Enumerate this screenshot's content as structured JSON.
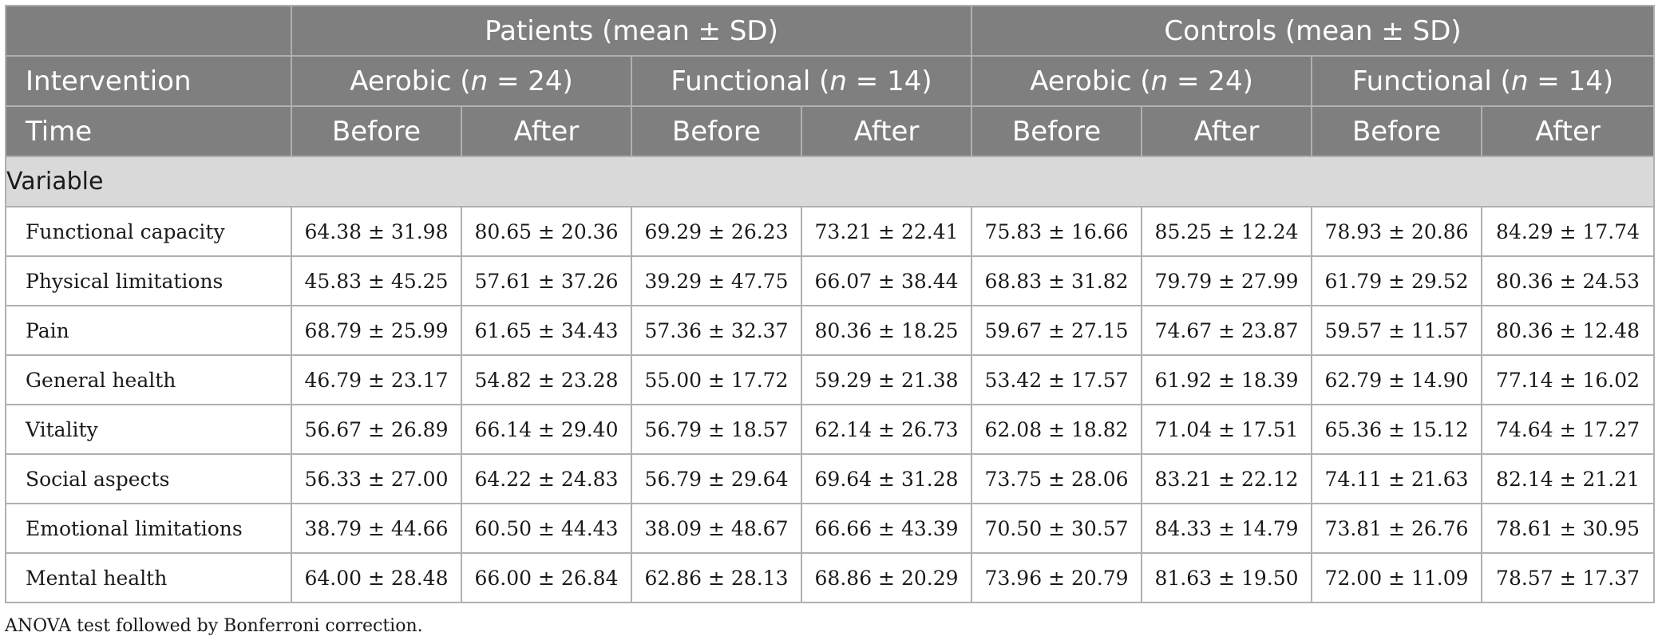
{
  "header": {
    "patients": "Patients (mean ± SD)",
    "controls": "Controls (mean ± SD)",
    "intervention": "Intervention",
    "aerobic_label": "Aerobic (",
    "functional_label": "Functional (",
    "n_symbol": "n",
    "aerobic_n": " = 24)",
    "functional_n": " = 14)",
    "time": "Time",
    "before": "Before",
    "after": "After"
  },
  "variable_label": "Variable",
  "rows": [
    {
      "label": "Functional capacity",
      "values": [
        "64.38 ± 31.98",
        "80.65 ± 20.36",
        "69.29 ± 26.23",
        "73.21 ± 22.41",
        "75.83 ± 16.66",
        "85.25 ± 12.24",
        "78.93 ± 20.86",
        "84.29 ± 17.74"
      ]
    },
    {
      "label": "Physical limitations",
      "values": [
        "45.83 ± 45.25",
        "57.61 ± 37.26",
        "39.29 ± 47.75",
        "66.07 ± 38.44",
        "68.83 ± 31.82",
        "79.79 ± 27.99",
        "61.79 ± 29.52",
        "80.36 ± 24.53"
      ]
    },
    {
      "label": "Pain",
      "values": [
        "68.79 ± 25.99",
        "61.65 ± 34.43",
        "57.36 ± 32.37",
        "80.36 ± 18.25",
        "59.67 ± 27.15",
        "74.67 ± 23.87",
        "59.57 ± 11.57",
        "80.36 ± 12.48"
      ]
    },
    {
      "label": "General health",
      "values": [
        "46.79 ± 23.17",
        "54.82 ± 23.28",
        "55.00 ± 17.72",
        "59.29 ± 21.38",
        "53.42 ± 17.57",
        "61.92 ± 18.39",
        "62.79 ± 14.90",
        "77.14 ± 16.02"
      ]
    },
    {
      "label": "Vitality",
      "values": [
        "56.67 ± 26.89",
        "66.14 ± 29.40",
        "56.79 ± 18.57",
        "62.14 ± 26.73",
        "62.08 ± 18.82",
        "71.04 ± 17.51",
        "65.36 ± 15.12",
        "74.64 ± 17.27"
      ]
    },
    {
      "label": "Social aspects",
      "values": [
        "56.33 ± 27.00",
        "64.22 ± 24.83",
        "56.79 ± 29.64",
        "69.64 ± 31.28",
        "73.75 ± 28.06",
        "83.21 ± 22.12",
        "74.11 ± 21.63",
        "82.14 ± 21.21"
      ]
    },
    {
      "label": "Emotional limitations",
      "values": [
        "38.79 ± 44.66",
        "60.50 ± 44.43",
        "38.09 ± 48.67",
        "66.66 ± 43.39",
        "70.50 ± 30.57",
        "84.33 ± 14.79",
        "73.81 ± 26.76",
        "78.61 ± 30.95"
      ]
    },
    {
      "label": "Mental health",
      "values": [
        "64.00 ± 28.48",
        "66.00 ± 26.84",
        "62.86 ± 28.13",
        "68.86 ± 20.29",
        "73.96 ± 20.79",
        "81.63 ± 19.50",
        "72.00 ± 11.09",
        "78.57 ± 17.37"
      ]
    }
  ],
  "footnote": "ANOVA test followed by Bonferroni correction."
}
